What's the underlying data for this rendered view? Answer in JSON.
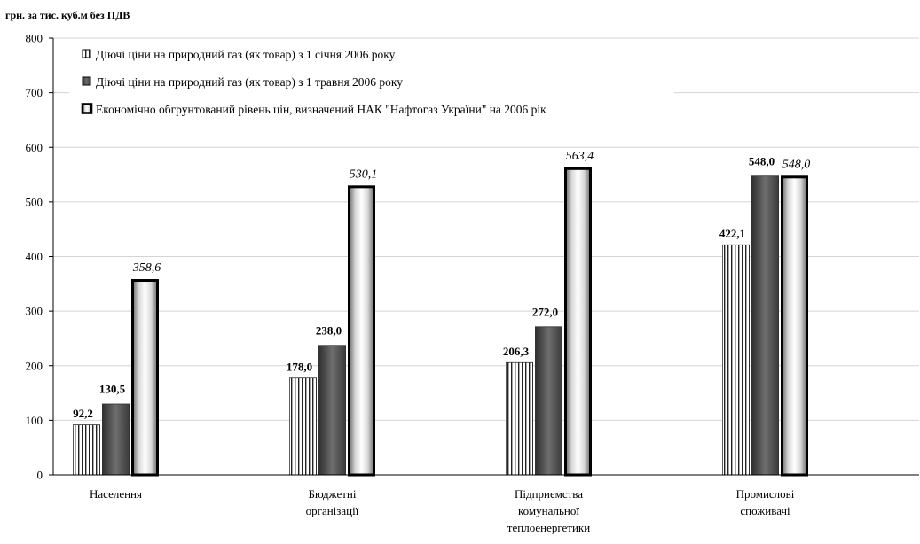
{
  "chart_data": {
    "type": "bar",
    "title": "",
    "ylabel": "грн. за тис. куб.м без ПДВ",
    "xlabel": "",
    "ylim": [
      0,
      800
    ],
    "yticks": [
      0,
      100,
      200,
      300,
      400,
      500,
      600,
      700,
      800
    ],
    "grid": true,
    "legend_position": "top-left",
    "categories": [
      [
        "Населення"
      ],
      [
        "Бюджетні",
        "організації"
      ],
      [
        "Підприємства",
        "комунальної",
        "теплоенергетики"
      ],
      [
        "Промислові",
        "споживачі"
      ]
    ],
    "series": [
      {
        "name": "Діючі ціни на природний газ (як товар) з 1 січня 2006 року",
        "values": [
          92.2,
          178.0,
          206.3,
          422.1
        ],
        "labels": [
          "92,2",
          "178,0",
          "206,3",
          "422,1"
        ],
        "style": "vertical-hatch"
      },
      {
        "name": "Діючі ціни на природний газ (як товар) з 1 травня 2006 року",
        "values": [
          130.5,
          238.0,
          272.0,
          548.0
        ],
        "labels": [
          "130,5",
          "238,0",
          "272,0",
          "548,0"
        ],
        "style": "dark-gradient"
      },
      {
        "name": "Економічно обгрунтований рівень цін, визначений НАК \"Нафтогаз України\" на 2006 рік",
        "values": [
          358.6,
          530.1,
          563.4,
          548.0
        ],
        "labels": [
          "358,6",
          "530,1",
          "563,4",
          "548,0"
        ],
        "style": "light-cylinder-thick-border"
      }
    ]
  }
}
